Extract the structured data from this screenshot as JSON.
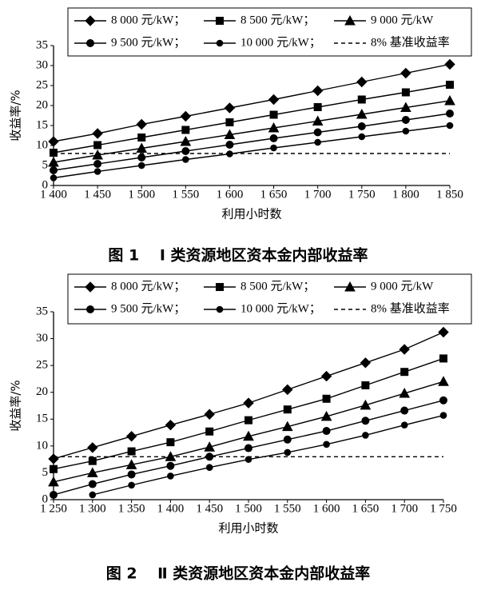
{
  "chart_data": [
    {
      "type": "line",
      "title": "图 1　 I 类资源地区资本金内部收益率",
      "xlabel": "利用小时数",
      "ylabel": "收益率/%",
      "x": [
        1400,
        1450,
        1500,
        1550,
        1600,
        1650,
        1700,
        1750,
        1800,
        1850
      ],
      "xlim": [
        1400,
        1850
      ],
      "xticks": [
        {
          "value": 1400,
          "label": "1 400"
        },
        {
          "value": 1450,
          "label": "1 450"
        },
        {
          "value": 1500,
          "label": "1 500"
        },
        {
          "value": 1550,
          "label": "1 550"
        },
        {
          "value": 1600,
          "label": "1 600"
        },
        {
          "value": 1650,
          "label": "1 650"
        },
        {
          "value": 1700,
          "label": "1 700"
        },
        {
          "value": 1750,
          "label": "1 750"
        },
        {
          "value": 1800,
          "label": "1 800"
        },
        {
          "value": 1850,
          "label": "1 850"
        }
      ],
      "ylim": [
        0,
        35
      ],
      "yticks": [
        0,
        5,
        10,
        15,
        20,
        25,
        30,
        35
      ],
      "series": [
        {
          "name": "8 000 元/kW；",
          "color": "#000000",
          "marker": "diamond",
          "values": [
            11,
            13,
            15.3,
            17.3,
            19.4,
            21.5,
            23.7,
            25.9,
            28.1,
            30.3
          ]
        },
        {
          "name": "8 500 元/kW；",
          "color": "#000000",
          "marker": "square",
          "values": [
            8.2,
            10.1,
            12,
            13.9,
            15.8,
            17.7,
            19.6,
            21.5,
            23.3,
            25.2
          ]
        },
        {
          "name": "9 000 元/kW",
          "color": "#000000",
          "marker": "triangle",
          "values": [
            5.8,
            7.6,
            9.3,
            11,
            12.7,
            14.4,
            16.1,
            17.8,
            19.5,
            21.2
          ]
        },
        {
          "name": "9 500 元/kW；",
          "color": "#000000",
          "marker": "circle",
          "values": [
            3.8,
            5.4,
            7,
            8.6,
            10.2,
            11.8,
            13.3,
            14.8,
            16.4,
            18
          ]
        },
        {
          "name": "10 000 元/kW；",
          "color": "#000000",
          "marker": "dot",
          "values": [
            1.9,
            3.5,
            5,
            6.5,
            7.9,
            9.4,
            10.8,
            12.2,
            13.6,
            15
          ]
        },
        {
          "name": "8% 基准收益率",
          "color": "#000000",
          "dashed": true,
          "values": [
            8,
            8,
            8,
            8,
            8,
            8,
            8,
            8,
            8,
            8
          ]
        }
      ]
    },
    {
      "type": "line",
      "title": "图 2　 Ⅱ 类资源地区资本金内部收益率",
      "xlabel": "利用小时数",
      "ylabel": "收益率/%",
      "x": [
        1250,
        1300,
        1350,
        1400,
        1450,
        1500,
        1550,
        1600,
        1650,
        1700,
        1750
      ],
      "xlim": [
        1250,
        1750
      ],
      "xticks": [
        {
          "value": 1250,
          "label": "1 250"
        },
        {
          "value": 1300,
          "label": "1 300"
        },
        {
          "value": 1350,
          "label": "1 350"
        },
        {
          "value": 1400,
          "label": "1 400"
        },
        {
          "value": 1450,
          "label": "1 450"
        },
        {
          "value": 1500,
          "label": "1 500"
        },
        {
          "value": 1550,
          "label": "1 550"
        },
        {
          "value": 1600,
          "label": "1 600"
        },
        {
          "value": 1650,
          "label": "1 650"
        },
        {
          "value": 1700,
          "label": "1 700"
        },
        {
          "value": 1750,
          "label": "1 750"
        }
      ],
      "ylim": [
        0,
        35
      ],
      "yticks": [
        0,
        5,
        10,
        15,
        20,
        25,
        30,
        35
      ],
      "series": [
        {
          "name": "8 000 元/kW；",
          "color": "#000000",
          "marker": "diamond",
          "values": [
            7.6,
            9.7,
            11.8,
            13.9,
            15.9,
            18,
            20.5,
            23,
            25.5,
            28,
            31.2
          ]
        },
        {
          "name": "8 500 元/kW；",
          "color": "#000000",
          "marker": "square",
          "values": [
            5.7,
            7.2,
            9,
            10.7,
            12.7,
            14.8,
            16.8,
            18.8,
            21.3,
            23.8,
            26.3
          ]
        },
        {
          "name": "9 000 元/kW",
          "color": "#000000",
          "marker": "triangle",
          "values": [
            3.3,
            5,
            6.5,
            8,
            9.8,
            11.8,
            13.6,
            15.5,
            17.6,
            19.8,
            22
          ]
        },
        {
          "name": "9 500 元/kW；",
          "color": "#000000",
          "marker": "circle",
          "values": [
            0.9,
            2.9,
            4.7,
            6.3,
            8,
            9.6,
            11.2,
            12.8,
            14.7,
            16.6,
            18.5
          ]
        },
        {
          "name": "10 000 元/kW；",
          "color": "#000000",
          "marker": "dot",
          "values": [
            null,
            0.9,
            2.7,
            4.4,
            6,
            7.5,
            8.8,
            10.3,
            12,
            13.9,
            15.7
          ]
        },
        {
          "name": "8% 基准收益率",
          "color": "#000000",
          "dashed": true,
          "values": [
            8,
            8,
            8,
            8,
            8,
            8,
            8,
            8,
            8,
            8,
            8
          ]
        }
      ]
    }
  ]
}
